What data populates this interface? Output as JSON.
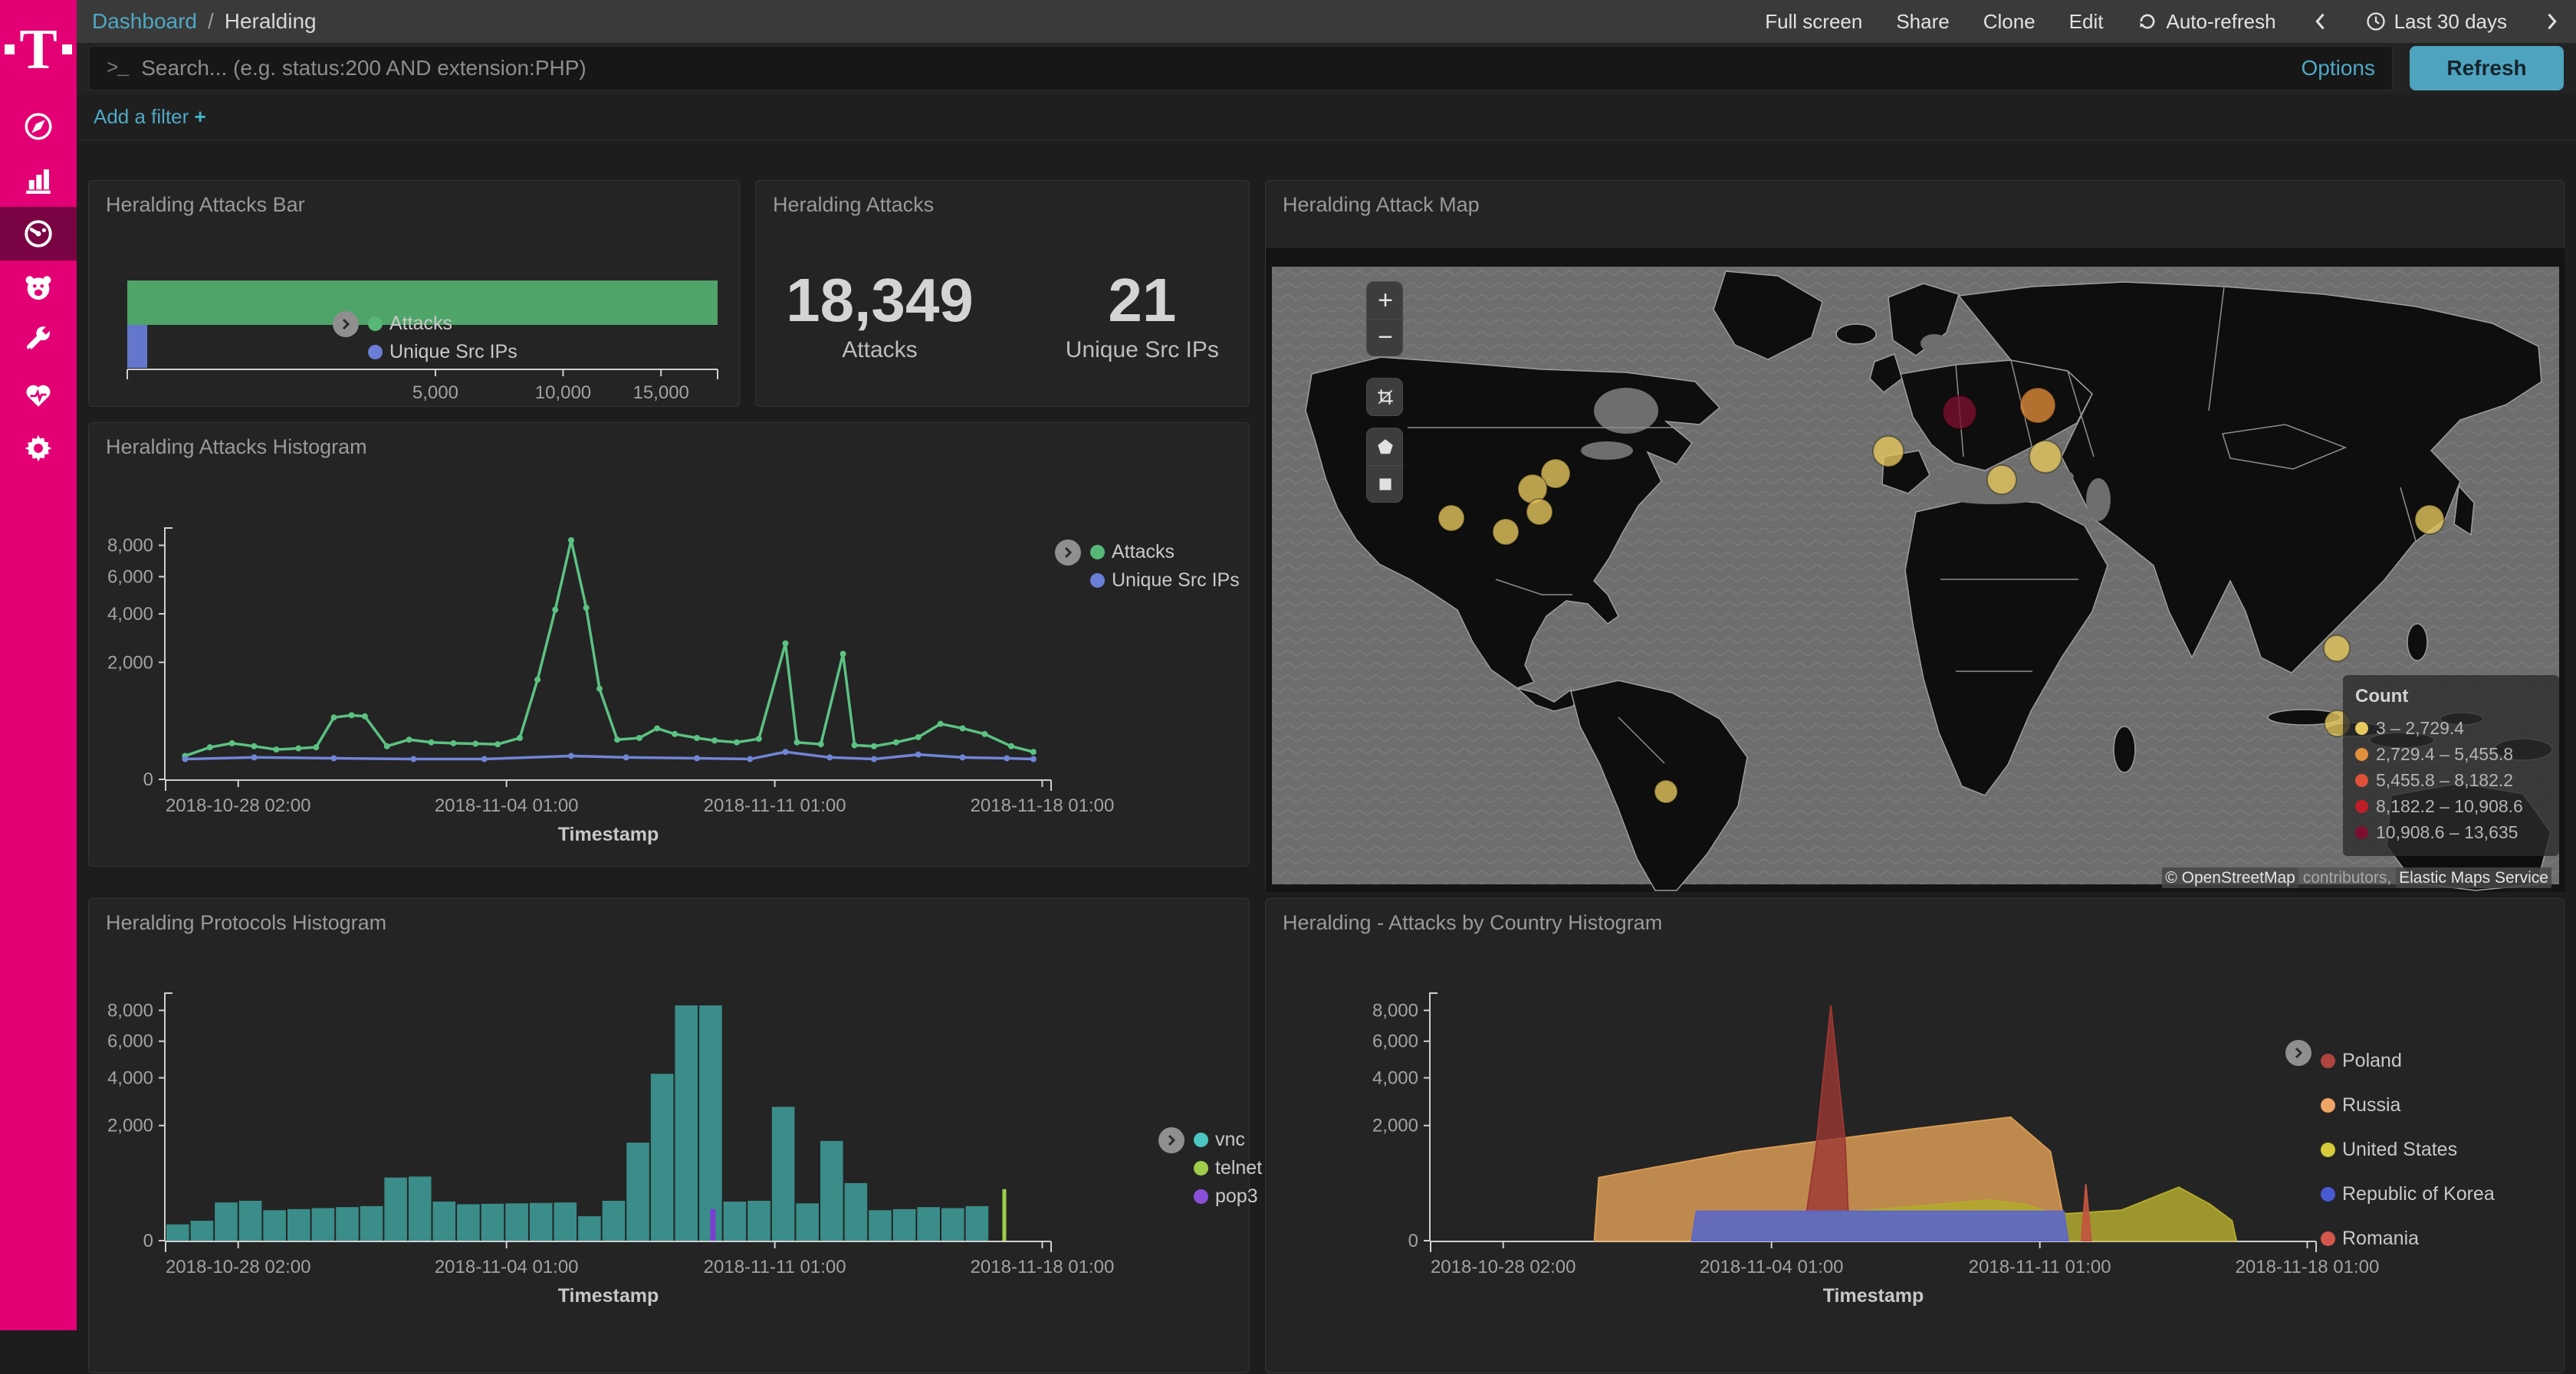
{
  "sidebar": {
    "logo": "T",
    "items": [
      "compass-icon",
      "bar-chart-icon",
      "gauge-icon",
      "bear-icon",
      "wrench-icon",
      "heartbeat-icon",
      "gear-icon"
    ],
    "selected_index": 2
  },
  "nav": {
    "breadcrumb_root": "Dashboard",
    "separator": "/",
    "breadcrumb_current": "Heralding",
    "actions": [
      "Full screen",
      "Share",
      "Clone",
      "Edit"
    ],
    "auto_refresh_label": "Auto-refresh",
    "time_range_label": "Last 30 days"
  },
  "search": {
    "placeholder": "Search... (e.g. status:200 AND extension:PHP)",
    "options_label": "Options",
    "refresh_label": "Refresh"
  },
  "filters": {
    "add_label": "Add a filter",
    "plus": "+"
  },
  "colors": {
    "accent": "#e20074",
    "link": "#4fa8c5",
    "refresh_button": "#4ea3bf"
  },
  "chart_data": [
    {
      "id": "attacks_bar",
      "type": "bar",
      "orientation": "horizontal",
      "scale": "sqrt",
      "title": "Heralding Attacks Bar",
      "max": 18349,
      "x_ticks": [
        {
          "label": "5,000",
          "value": 5000
        },
        {
          "label": "10,000",
          "value": 10000
        },
        {
          "label": "15,000",
          "value": 15000
        }
      ],
      "series": [
        {
          "name": "Attacks",
          "value": 18349,
          "color": "#4fa469",
          "legend_color": "#57b777"
        },
        {
          "name": "Unique Src IPs",
          "value": 21,
          "color": "#6577cc",
          "legend_color": "#6b7ed6"
        }
      ]
    },
    {
      "id": "attacks_metric",
      "type": "metric",
      "title": "Heralding Attacks",
      "items": [
        {
          "value": "18,349",
          "label": "Attacks"
        },
        {
          "value": "21",
          "label": "Unique Src IPs"
        }
      ]
    },
    {
      "id": "attack_map",
      "type": "map",
      "title": "Heralding Attack Map",
      "legend_title": "Count",
      "buckets": [
        {
          "label": "3 – 2,729.4",
          "color": "#e8c95f"
        },
        {
          "label": "2,729.4 – 5,455.8",
          "color": "#e1903c"
        },
        {
          "label": "5,455.8 – 8,182.2",
          "color": "#e05038"
        },
        {
          "label": "8,182.2 – 10,908.6",
          "color": "#c01e28"
        },
        {
          "label": "10,908.6 – 13,635",
          "color": "#7c0f2e"
        }
      ],
      "attribution": {
        "p1": "© OpenStreetMap",
        "p2": " contributors, ",
        "p3": "Elastic Maps Service"
      },
      "points": [
        {
          "x": 378,
          "y": 382,
          "r": 19,
          "c": "#e3c55e"
        },
        {
          "x": 348,
          "y": 402,
          "r": 19,
          "c": "#e3c55e"
        },
        {
          "x": 357,
          "y": 432,
          "r": 17,
          "c": "#e3c55e"
        },
        {
          "x": 242,
          "y": 440,
          "r": 17,
          "c": "#e3c55e"
        },
        {
          "x": 313,
          "y": 458,
          "r": 17,
          "c": "#e3c55e"
        },
        {
          "x": 812,
          "y": 353,
          "r": 20,
          "c": "#e3c55e"
        },
        {
          "x": 960,
          "y": 390,
          "r": 19,
          "c": "#e3c55e"
        },
        {
          "x": 1017,
          "y": 360,
          "r": 21,
          "c": "#e3c55e"
        },
        {
          "x": 905,
          "y": 302,
          "r": 22,
          "c": "#7c0f2e"
        },
        {
          "x": 1007,
          "y": 293,
          "r": 23,
          "c": "#dd8a37"
        },
        {
          "x": 1518,
          "y": 442,
          "r": 19,
          "c": "#e3c55e"
        },
        {
          "x": 1397,
          "y": 610,
          "r": 17,
          "c": "#e3c55e"
        },
        {
          "x": 1398,
          "y": 708,
          "r": 17,
          "c": "#e3c55e"
        },
        {
          "x": 522,
          "y": 797,
          "r": 15,
          "c": "#e3c55e"
        }
      ]
    },
    {
      "id": "attacks_histogram",
      "type": "line",
      "scale": "sqrt",
      "title": "Heralding Attacks Histogram",
      "xlabel": "Timestamp",
      "ymax": 8349,
      "y_ticks": [
        0,
        2000,
        4000,
        6000,
        8000
      ],
      "x_ticks": [
        "2018-10-28 02:00",
        "2018-11-04 01:00",
        "2018-11-11 01:00",
        "2018-11-18 01:00"
      ],
      "series": [
        {
          "name": "Attacks",
          "color": "#5cc282",
          "legend_color": "#57b777",
          "points": [
            [
              0.022,
              80
            ],
            [
              0.05,
              150
            ],
            [
              0.075,
              190
            ],
            [
              0.1,
              160
            ],
            [
              0.125,
              130
            ],
            [
              0.15,
              140
            ],
            [
              0.17,
              150
            ],
            [
              0.19,
              560
            ],
            [
              0.21,
              600
            ],
            [
              0.225,
              580
            ],
            [
              0.25,
              160
            ],
            [
              0.275,
              230
            ],
            [
              0.3,
              200
            ],
            [
              0.325,
              190
            ],
            [
              0.35,
              185
            ],
            [
              0.375,
              180
            ],
            [
              0.4,
              250
            ],
            [
              0.42,
              1450
            ],
            [
              0.44,
              4200
            ],
            [
              0.458,
              8349
            ],
            [
              0.475,
              4300
            ],
            [
              0.49,
              1200
            ],
            [
              0.51,
              230
            ],
            [
              0.535,
              250
            ],
            [
              0.555,
              380
            ],
            [
              0.575,
              300
            ],
            [
              0.6,
              250
            ],
            [
              0.62,
              220
            ],
            [
              0.645,
              200
            ],
            [
              0.67,
              240
            ],
            [
              0.7,
              2700
            ],
            [
              0.713,
              200
            ],
            [
              0.74,
              180
            ],
            [
              0.765,
              2300
            ],
            [
              0.778,
              170
            ],
            [
              0.8,
              160
            ],
            [
              0.825,
              200
            ],
            [
              0.85,
              260
            ],
            [
              0.875,
              450
            ],
            [
              0.9,
              380
            ],
            [
              0.925,
              300
            ],
            [
              0.955,
              160
            ],
            [
              0.98,
              110
            ]
          ]
        },
        {
          "name": "Unique Src IPs",
          "color": "#7185d6",
          "legend_color": "#6b7ed6",
          "points": [
            [
              0.022,
              60
            ],
            [
              0.1,
              70
            ],
            [
              0.19,
              65
            ],
            [
              0.28,
              60
            ],
            [
              0.36,
              60
            ],
            [
              0.458,
              80
            ],
            [
              0.52,
              70
            ],
            [
              0.6,
              65
            ],
            [
              0.66,
              60
            ],
            [
              0.7,
              110
            ],
            [
              0.75,
              70
            ],
            [
              0.8,
              60
            ],
            [
              0.85,
              90
            ],
            [
              0.9,
              70
            ],
            [
              0.95,
              65
            ],
            [
              0.98,
              60
            ]
          ]
        }
      ]
    },
    {
      "id": "protocols_histogram",
      "type": "histogram",
      "scale": "sqrt",
      "title": "Heralding Protocols Histogram",
      "xlabel": "Timestamp",
      "ymax": 8349,
      "y_ticks": [
        0,
        2000,
        4000,
        6000,
        8000
      ],
      "x_ticks": [
        "2018-10-28 02:00",
        "2018-11-04 01:00",
        "2018-11-11 01:00",
        "2018-11-18 01:00"
      ],
      "series": [
        {
          "name": "vnc",
          "color": "#3a8d89",
          "legend_color": "#4cc6c0",
          "values": [
            40,
            60,
            220,
            240,
            140,
            150,
            160,
            170,
            180,
            600,
            620,
            230,
            200,
            205,
            210,
            215,
            220,
            90,
            240,
            1450,
            4200,
            8349,
            8349,
            230,
            240,
            2700,
            210,
            1500,
            500,
            140,
            150,
            170,
            160,
            180
          ]
        },
        {
          "name": "telnet",
          "color": "#9ece4c",
          "legend_color": "#9ece4c",
          "spike": {
            "x": 0.945,
            "value": 400
          }
        },
        {
          "name": "pop3",
          "color": "#7a3fd1",
          "legend_color": "#8a4fd8",
          "spike": {
            "x": 0.615,
            "value": 150
          }
        }
      ]
    },
    {
      "id": "country_histogram",
      "type": "area",
      "scale": "sqrt",
      "title": "Heralding - Attacks by Country Histogram",
      "xlabel": "Timestamp",
      "ymax": 8349,
      "y_ticks": [
        0,
        2000,
        4000,
        6000,
        8000
      ],
      "x_ticks": [
        "2018-10-28 02:00",
        "2018-11-04 01:00",
        "2018-11-11 01:00",
        "2018-11-18 01:00"
      ],
      "series": [
        {
          "name": "Poland",
          "color": "#9c3733",
          "fill": "rgba(156,55,51,0.78)",
          "legend_color": "#b04540",
          "points": [
            [
              0.42,
              0
            ],
            [
              0.435,
              1250
            ],
            [
              0.452,
              8349
            ],
            [
              0.468,
              1500
            ],
            [
              0.473,
              0
            ]
          ]
        },
        {
          "name": "Russia",
          "color": "#d99b55",
          "fill": "rgba(217,155,85,0.85)",
          "legend_color": "#f0a465",
          "points": [
            [
              0.185,
              0
            ],
            [
              0.19,
              600
            ],
            [
              0.35,
              1200
            ],
            [
              0.55,
              1900
            ],
            [
              0.655,
              2300
            ],
            [
              0.7,
              1200
            ],
            [
              0.72,
              0
            ]
          ]
        },
        {
          "name": "United States",
          "color": "#b3aa2e",
          "fill": "rgba(179,170,46,0.85)",
          "legend_color": "#d6cb3a",
          "points": [
            [
              0.295,
              0
            ],
            [
              0.3,
              40
            ],
            [
              0.55,
              180
            ],
            [
              0.63,
              250
            ],
            [
              0.67,
              200
            ],
            [
              0.7,
              120
            ],
            [
              0.72,
              110
            ],
            [
              0.78,
              140
            ],
            [
              0.845,
              430
            ],
            [
              0.88,
              200
            ],
            [
              0.905,
              60
            ],
            [
              0.91,
              0
            ]
          ]
        },
        {
          "name": "Republic of Korea",
          "color": "#5b67c8",
          "fill": "rgba(91,103,200,0.9)",
          "legend_color": "#4a5ad1",
          "points": [
            [
              0.295,
              0
            ],
            [
              0.3,
              130
            ],
            [
              0.715,
              130
            ],
            [
              0.72,
              0
            ]
          ]
        },
        {
          "name": "Romania",
          "color": "#c2543f",
          "fill": "rgba(194,84,63,0.9)",
          "legend_color": "#d2574a",
          "points": [
            [
              0.735,
              0
            ],
            [
              0.74,
              480
            ],
            [
              0.746,
              0
            ]
          ]
        }
      ]
    }
  ]
}
